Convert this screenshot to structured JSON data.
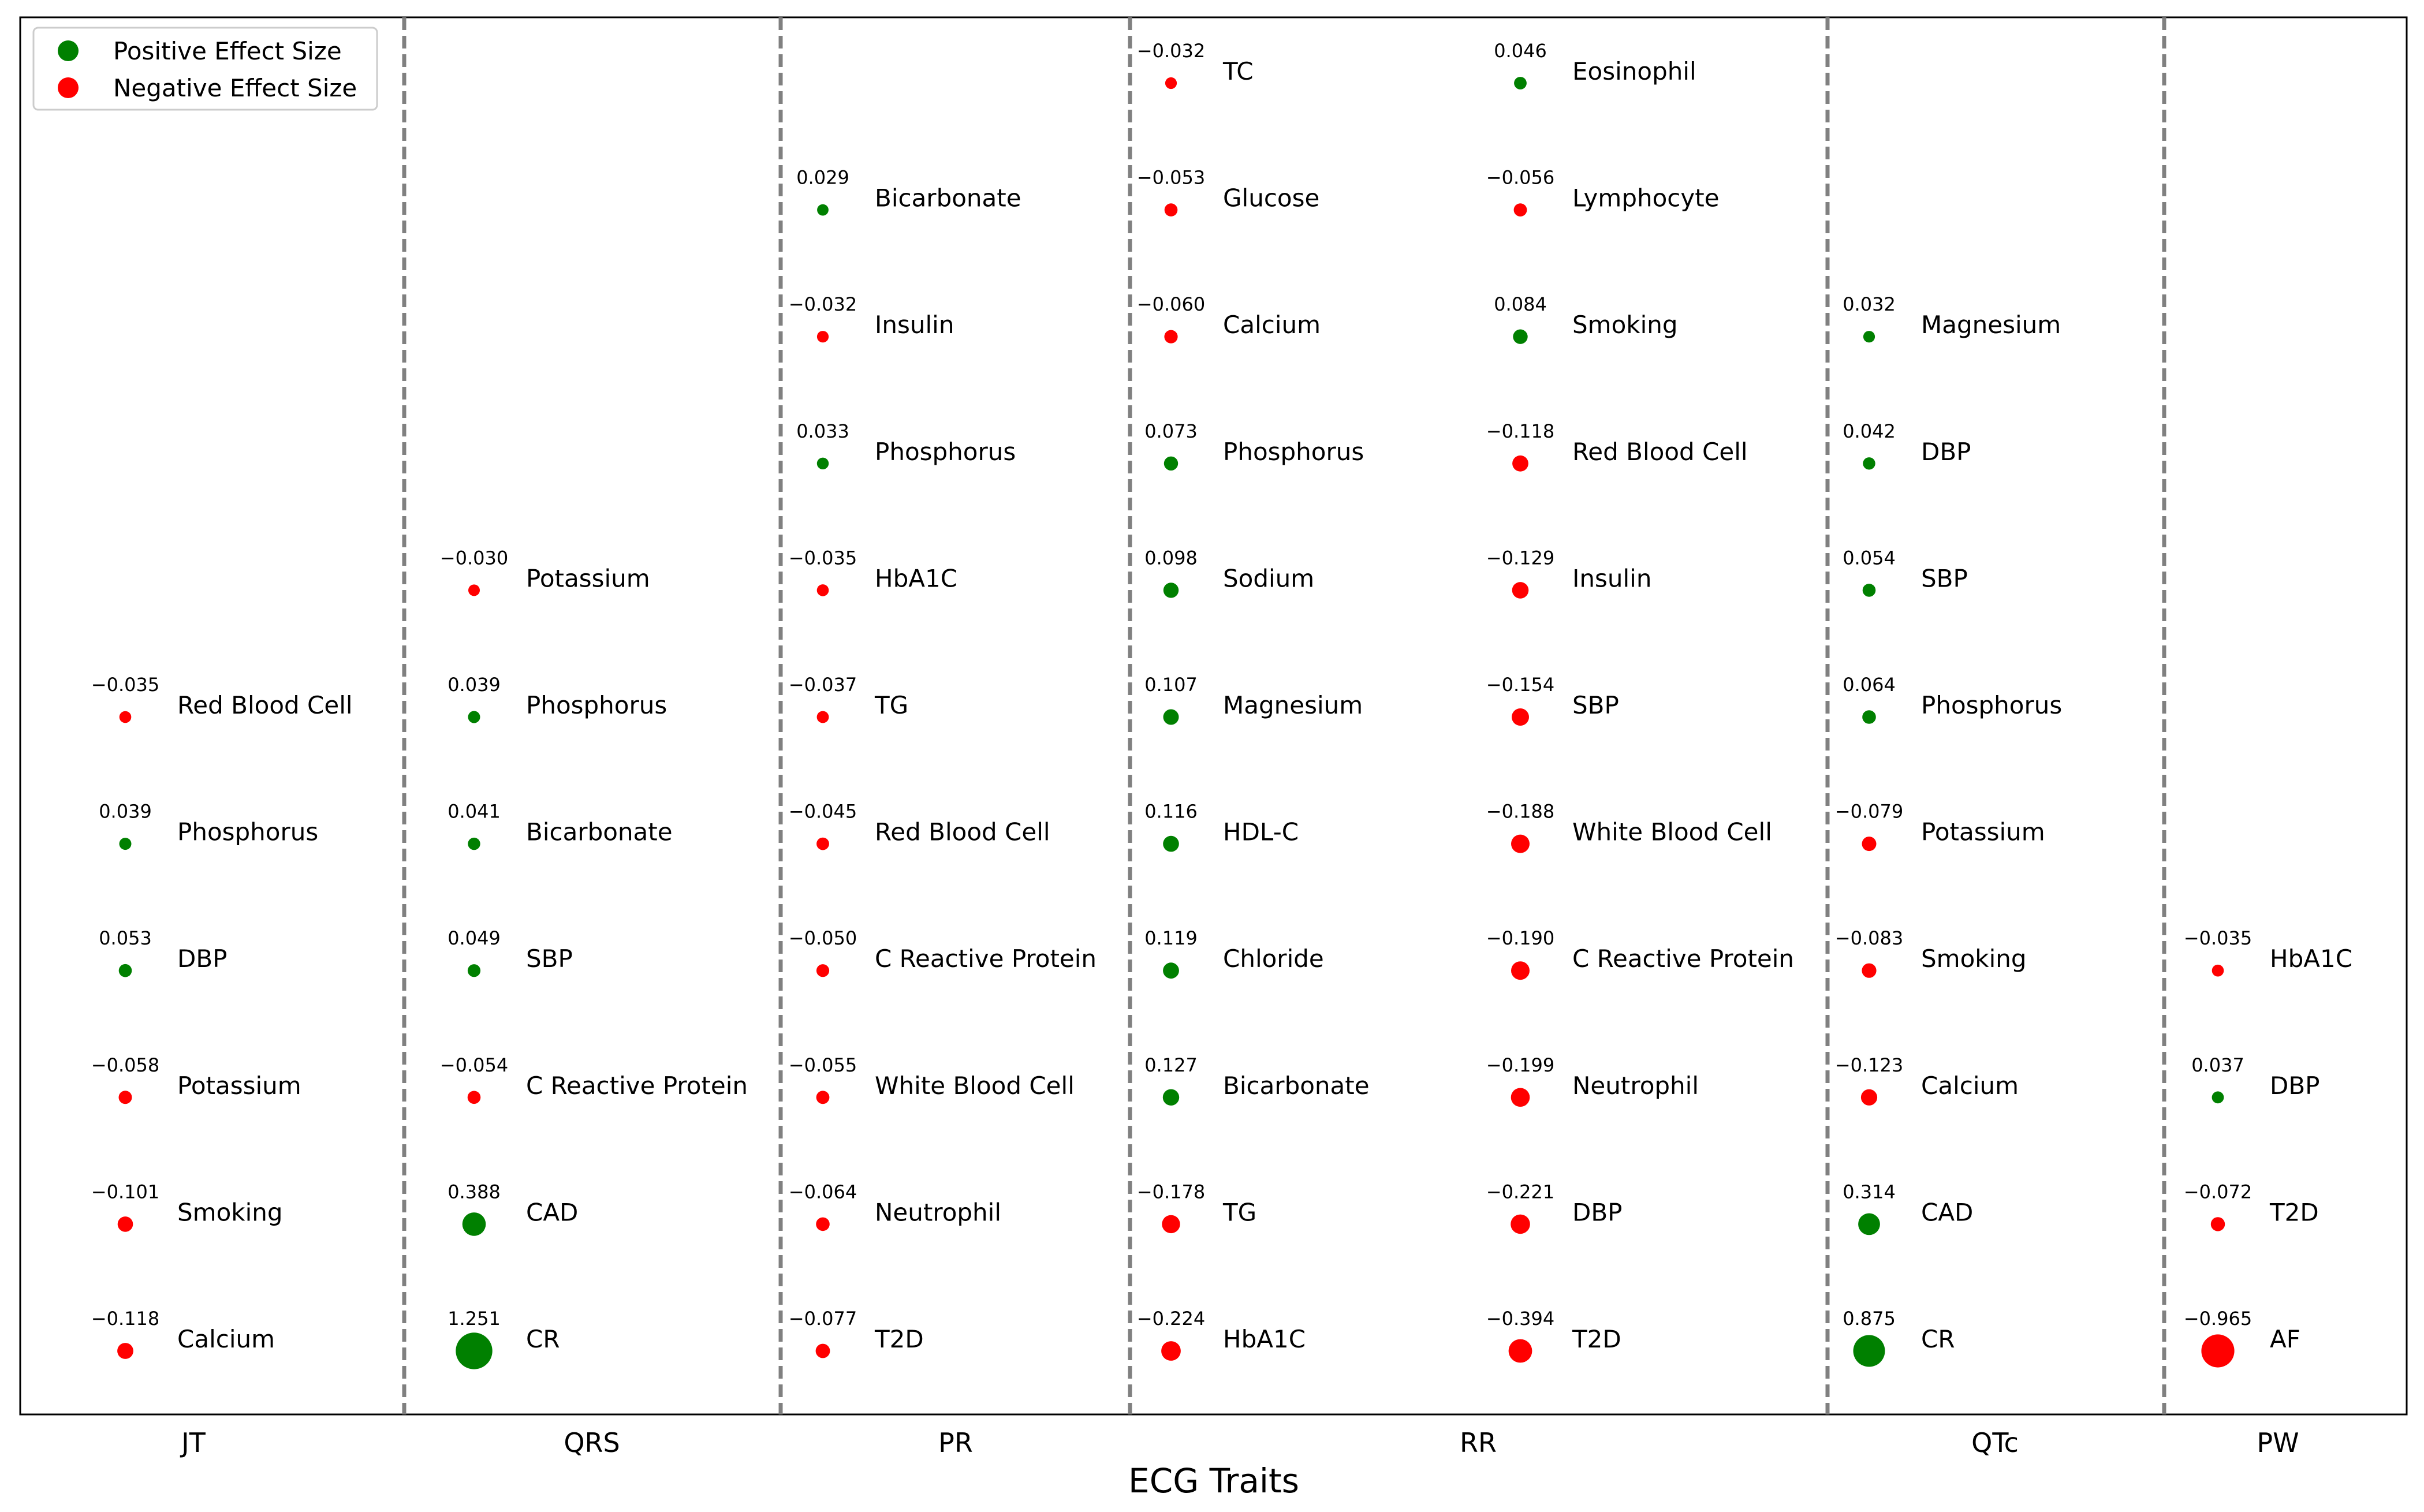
{
  "colors": {
    "positive": "#008000",
    "negative": "#ff0000",
    "divider": "#808080"
  },
  "chart_data": {
    "type": "scatter",
    "xlabel": "ECG Traits",
    "ylabel": "",
    "grid": false,
    "legend_position": "top-left",
    "legend": [
      {
        "label": "Positive Effect Size",
        "color": "positive"
      },
      {
        "label": "Negative Effect Size",
        "color": "negative"
      }
    ],
    "groups": [
      {
        "name": "JT",
        "columns": [
          [
            {
              "trait": "Calcium",
              "value": -0.118
            },
            {
              "trait": "Smoking",
              "value": -0.101
            },
            {
              "trait": "Potassium",
              "value": -0.058
            },
            {
              "trait": "DBP",
              "value": 0.053
            },
            {
              "trait": "Phosphorus",
              "value": 0.039
            },
            {
              "trait": "Red Blood Cell",
              "value": -0.035
            }
          ]
        ]
      },
      {
        "name": "QRS",
        "columns": [
          [
            {
              "trait": "CR",
              "value": 1.251
            },
            {
              "trait": "CAD",
              "value": 0.388
            },
            {
              "trait": "C Reactive Protein",
              "value": -0.054
            },
            {
              "trait": "SBP",
              "value": 0.049
            },
            {
              "trait": "Bicarbonate",
              "value": 0.041
            },
            {
              "trait": "Phosphorus",
              "value": 0.039
            },
            {
              "trait": "Potassium",
              "value": -0.03
            }
          ]
        ]
      },
      {
        "name": "PR",
        "columns": [
          [
            {
              "trait": "T2D",
              "value": -0.077
            },
            {
              "trait": "Neutrophil",
              "value": -0.064
            },
            {
              "trait": "White Blood Cell",
              "value": -0.055
            },
            {
              "trait": "C Reactive Protein",
              "value": -0.05
            },
            {
              "trait": "Red Blood Cell",
              "value": -0.045
            },
            {
              "trait": "TG",
              "value": -0.037
            },
            {
              "trait": "HbA1C",
              "value": -0.035
            },
            {
              "trait": "Phosphorus",
              "value": 0.033
            },
            {
              "trait": "Insulin",
              "value": -0.032
            },
            {
              "trait": "Bicarbonate",
              "value": 0.029
            }
          ]
        ]
      },
      {
        "name": "RR",
        "columns": [
          [
            {
              "trait": "HbA1C",
              "value": -0.224
            },
            {
              "trait": "TG",
              "value": -0.178
            },
            {
              "trait": "Bicarbonate",
              "value": 0.127
            },
            {
              "trait": "Chloride",
              "value": 0.119
            },
            {
              "trait": "HDL-C",
              "value": 0.116
            },
            {
              "trait": "Magnesium",
              "value": 0.107
            },
            {
              "trait": "Sodium",
              "value": 0.098
            },
            {
              "trait": "Phosphorus",
              "value": 0.073
            },
            {
              "trait": "Calcium",
              "value": -0.06
            },
            {
              "trait": "Glucose",
              "value": -0.053
            },
            {
              "trait": "TC",
              "value": -0.032
            }
          ],
          [
            {
              "trait": "T2D",
              "value": -0.394
            },
            {
              "trait": "DBP",
              "value": -0.221
            },
            {
              "trait": "Neutrophil",
              "value": -0.199
            },
            {
              "trait": "C Reactive Protein",
              "value": -0.19
            },
            {
              "trait": "White Blood Cell",
              "value": -0.188
            },
            {
              "trait": "SBP",
              "value": -0.154
            },
            {
              "trait": "Insulin",
              "value": -0.129
            },
            {
              "trait": "Red Blood Cell",
              "value": -0.118
            },
            {
              "trait": "Smoking",
              "value": 0.084
            },
            {
              "trait": "Lymphocyte",
              "value": -0.056
            },
            {
              "trait": "Eosinophil",
              "value": 0.046
            }
          ]
        ]
      },
      {
        "name": "QTc",
        "columns": [
          [
            {
              "trait": "CR",
              "value": 0.875
            },
            {
              "trait": "CAD",
              "value": 0.314
            },
            {
              "trait": "Calcium",
              "value": -0.123
            },
            {
              "trait": "Smoking",
              "value": -0.083
            },
            {
              "trait": "Potassium",
              "value": -0.079
            },
            {
              "trait": "Phosphorus",
              "value": 0.064
            },
            {
              "trait": "SBP",
              "value": 0.054
            },
            {
              "trait": "DBP",
              "value": 0.042
            },
            {
              "trait": "Magnesium",
              "value": 0.032
            }
          ]
        ]
      },
      {
        "name": "PW",
        "columns": [
          [
            {
              "trait": "AF",
              "value": -0.965
            },
            {
              "trait": "T2D",
              "value": -0.072
            },
            {
              "trait": "DBP",
              "value": 0.037
            },
            {
              "trait": "HbA1C",
              "value": -0.035
            }
          ]
        ]
      }
    ]
  }
}
